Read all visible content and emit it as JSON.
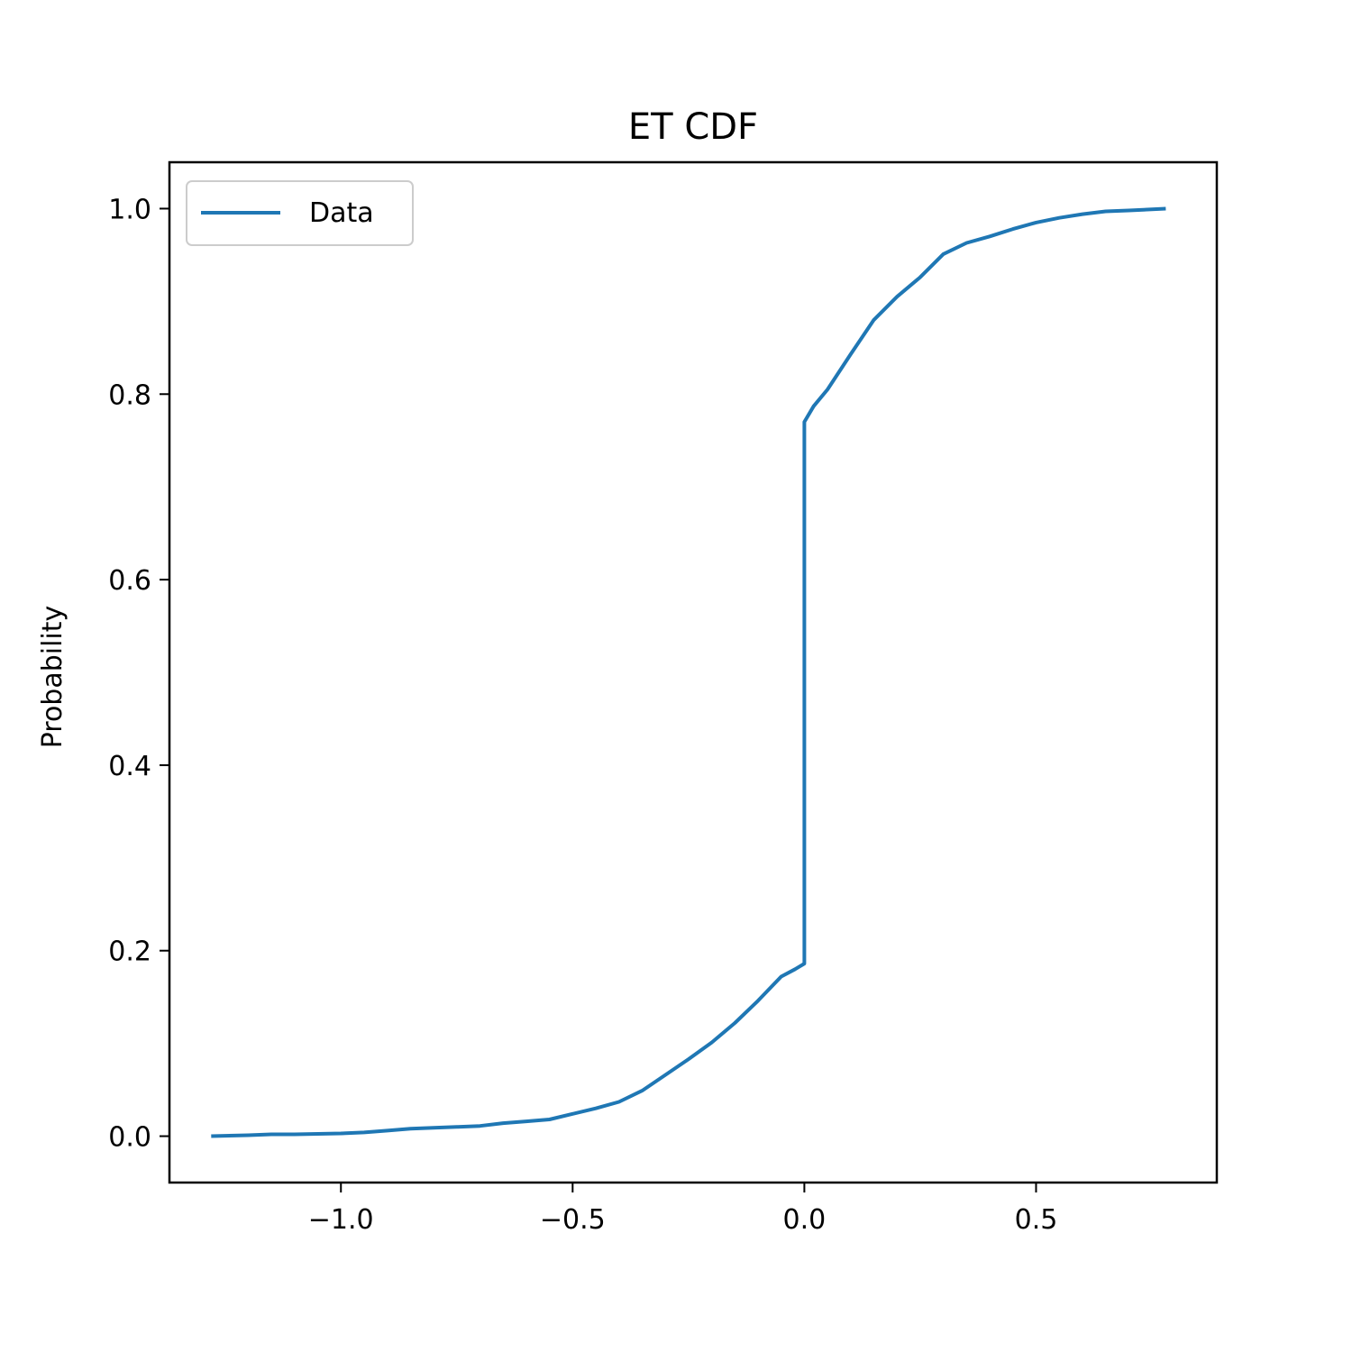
{
  "chart_data": {
    "type": "line",
    "title": "ET CDF",
    "xlabel": "",
    "ylabel": "Probability",
    "xlim": [
      -1.37,
      0.89
    ],
    "ylim": [
      -0.05,
      1.05
    ],
    "xticks": [
      -1.0,
      -0.5,
      0.0,
      0.5
    ],
    "xtick_labels": [
      "−1.0",
      "−0.5",
      "0.0",
      "0.5"
    ],
    "yticks": [
      0.0,
      0.2,
      0.4,
      0.6,
      0.8,
      1.0
    ],
    "ytick_labels": [
      "0.0",
      "0.2",
      "0.4",
      "0.6",
      "0.8",
      "1.0"
    ],
    "grid": false,
    "legend_position": "top-left",
    "series": [
      {
        "name": "Data",
        "color": "#1f77b4",
        "x": [
          -1.28,
          -1.2,
          -1.15,
          -1.1,
          -1.0,
          -0.95,
          -0.9,
          -0.85,
          -0.8,
          -0.75,
          -0.7,
          -0.65,
          -0.6,
          -0.55,
          -0.5,
          -0.45,
          -0.4,
          -0.35,
          -0.3,
          -0.25,
          -0.2,
          -0.15,
          -0.1,
          -0.05,
          -0.02,
          0.0,
          0.0,
          0.0,
          0.02,
          0.05,
          0.1,
          0.15,
          0.2,
          0.25,
          0.3,
          0.35,
          0.4,
          0.45,
          0.5,
          0.55,
          0.6,
          0.65,
          0.7,
          0.78
        ],
        "y": [
          0.0,
          0.001,
          0.002,
          0.002,
          0.003,
          0.004,
          0.006,
          0.008,
          0.009,
          0.01,
          0.011,
          0.014,
          0.016,
          0.018,
          0.024,
          0.03,
          0.037,
          0.049,
          0.066,
          0.083,
          0.101,
          0.122,
          0.146,
          0.172,
          0.18,
          0.186,
          0.5,
          0.77,
          0.787,
          0.805,
          0.843,
          0.88,
          0.905,
          0.926,
          0.951,
          0.963,
          0.97,
          0.978,
          0.985,
          0.99,
          0.994,
          0.997,
          0.998,
          1.0
        ]
      }
    ]
  }
}
